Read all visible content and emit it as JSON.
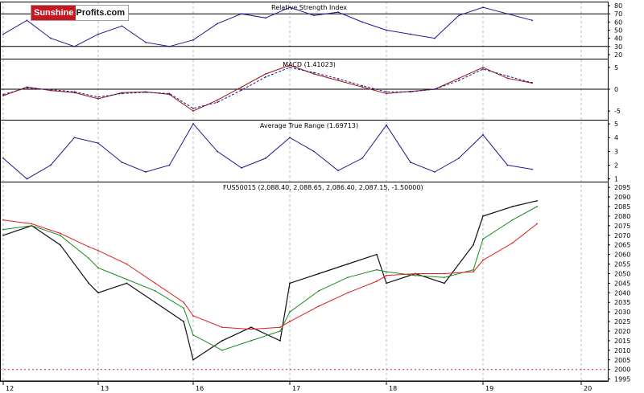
{
  "logo": {
    "part1": "Sunshine",
    "part2": "Profits.com"
  },
  "colors": {
    "rsi": "#1a1a8c",
    "macd": "#a01010",
    "signal": "#1a1a8c",
    "atr": "#1a1a8c",
    "price": "#111111",
    "ma_fast": "#1c8a1c",
    "ma_slow": "#dd2020",
    "dotted": "#cc2222",
    "grid": "#b8b8b8",
    "axis": "#000000"
  },
  "x_axis": {
    "labels": [
      {
        "label": "12",
        "at": 0
      },
      {
        "label": "13",
        "at": 1
      },
      {
        "label": "16",
        "at": 2
      },
      {
        "label": "17",
        "at": 3
      },
      {
        "label": "18",
        "at": 4
      },
      {
        "label": "19",
        "at": 5
      },
      {
        "label": "20",
        "at": 6
      }
    ]
  },
  "chart_data": [
    {
      "type": "line",
      "title": "Relative Strength Index",
      "ylim": [
        15,
        85
      ],
      "yticks": [
        20,
        30,
        40,
        50,
        60,
        70,
        80
      ],
      "hlines": [
        30,
        70
      ],
      "x": [
        0,
        0.25,
        0.5,
        0.75,
        1.0,
        1.25,
        1.5,
        1.75,
        2.0,
        2.25,
        2.5,
        2.75,
        3.0,
        3.25,
        3.5,
        3.75,
        4.0,
        4.25,
        4.5,
        4.75,
        5.0,
        5.25,
        5.5
      ],
      "series": [
        {
          "values": [
            45,
            62,
            40,
            30,
            45,
            55,
            35,
            30,
            38,
            58,
            70,
            65,
            78,
            68,
            72,
            60,
            50,
            45,
            40,
            68,
            78,
            70,
            62
          ]
        }
      ]
    },
    {
      "type": "line",
      "title": "MACD (1.41023)",
      "ylim": [
        -7,
        7
      ],
      "yticks": [
        -5,
        0,
        5
      ],
      "hlines": [
        0
      ],
      "x": [
        0,
        0.25,
        0.5,
        0.75,
        1.0,
        1.25,
        1.5,
        1.75,
        2.0,
        2.25,
        2.5,
        2.75,
        3.0,
        3.25,
        3.5,
        3.75,
        4.0,
        4.25,
        4.5,
        4.75,
        5.0,
        5.25,
        5.5
      ],
      "series": [
        {
          "values": [
            -1.5,
            0.5,
            -0.3,
            -0.8,
            -2.2,
            -0.8,
            -0.6,
            -1.2,
            -5.0,
            -2.5,
            0.5,
            3.5,
            5.5,
            3.5,
            2.0,
            0.5,
            -1.0,
            -0.5,
            0.0,
            2.5,
            5.0,
            2.5,
            1.4
          ]
        },
        {
          "values": [
            -1.2,
            0.3,
            -0.1,
            -0.6,
            -1.8,
            -1.0,
            -0.7,
            -1.0,
            -4.4,
            -3.0,
            -0.2,
            2.8,
            5.0,
            3.8,
            2.4,
            0.8,
            -0.6,
            -0.6,
            0.0,
            2.0,
            4.6,
            3.0,
            1.5
          ]
        }
      ]
    },
    {
      "type": "line",
      "title": "Average True Range (1.69713)",
      "ylim": [
        0.8,
        5.3
      ],
      "yticks": [
        1,
        2,
        3,
        4,
        5
      ],
      "x": [
        0,
        0.25,
        0.5,
        0.75,
        1.0,
        1.25,
        1.5,
        1.75,
        2.0,
        2.25,
        2.5,
        2.75,
        3.0,
        3.25,
        3.5,
        3.75,
        4.0,
        4.25,
        4.5,
        4.75,
        5.0,
        5.25,
        5.5
      ],
      "series": [
        {
          "values": [
            2.5,
            1.0,
            2.0,
            4.0,
            3.6,
            2.2,
            1.5,
            2.0,
            5.0,
            3.0,
            1.8,
            2.5,
            4.0,
            3.0,
            1.6,
            2.5,
            4.9,
            2.2,
            1.5,
            2.5,
            4.2,
            2.0,
            1.7
          ]
        }
      ]
    },
    {
      "type": "line",
      "title": "FUS50015 (2,088.40, 2,088.65, 2,086.40, 2,087.15, -1.50000)",
      "ylim": [
        1994,
        2098
      ],
      "yticks": [
        1995,
        2000,
        2005,
        2010,
        2015,
        2020,
        2025,
        2030,
        2035,
        2040,
        2045,
        2050,
        2055,
        2060,
        2065,
        2070,
        2075,
        2080,
        2085,
        2090,
        2095
      ],
      "hlines": [
        2000
      ],
      "x": [
        0,
        0.3,
        0.6,
        0.9,
        1.0,
        1.3,
        1.6,
        1.9,
        2.0,
        2.3,
        2.6,
        2.9,
        3.0,
        3.3,
        3.6,
        3.9,
        4.0,
        4.3,
        4.6,
        4.9,
        5.0,
        5.3,
        5.55
      ],
      "series": [
        {
          "name": "price",
          "values": [
            2070,
            2075,
            2065,
            2045,
            2040,
            2045,
            2035,
            2025,
            2005,
            2015,
            2022,
            2015,
            2045,
            2050,
            2055,
            2060,
            2045,
            2050,
            2045,
            2065,
            2080,
            2085,
            2088
          ]
        },
        {
          "name": "ma_fast",
          "values": [
            2073,
            2075,
            2070,
            2058,
            2053,
            2047,
            2041,
            2032,
            2018,
            2010,
            2015,
            2020,
            2030,
            2041,
            2048,
            2052,
            2051,
            2049,
            2048,
            2052,
            2068,
            2078,
            2085
          ]
        },
        {
          "name": "ma_slow",
          "values": [
            2078,
            2076,
            2071,
            2064,
            2062,
            2055,
            2045,
            2035,
            2028,
            2022,
            2021,
            2022,
            2025,
            2033,
            2040,
            2046,
            2049,
            2050,
            2050,
            2051,
            2057,
            2066,
            2076
          ]
        }
      ]
    }
  ]
}
